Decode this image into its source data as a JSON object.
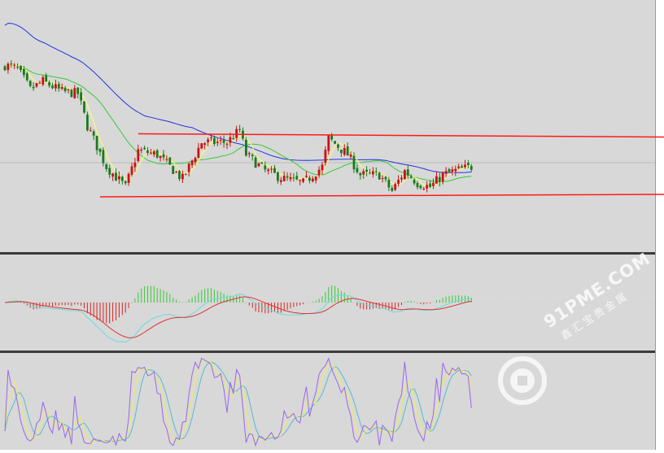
{
  "colors": {
    "background": "#d8d8d8",
    "separator": "#3a3a3a",
    "candle_up": "#cc1010",
    "candle_down": "#1a7a1a",
    "ma_fast": "#ffff66",
    "ma_mid": "#33cc33",
    "ma_slow": "#2233dd",
    "trendline": "#ff1a1a",
    "macd_pos": "#33cc33",
    "macd_neg": "#dd2222",
    "macd_dif": "#66dddd",
    "macd_dea": "#dd3333",
    "stoch_k": "#9966ee",
    "stoch_d": "#eeee55",
    "stoch_j": "#55bbcc"
  },
  "watermark": {
    "line1": "91PME.COM",
    "line2": "鑫汇宝贵金属",
    "icon": "coin-logo"
  },
  "chart_data": [
    {
      "type": "candlestick",
      "panel": "price",
      "series": [
        {
          "name": "OHLC",
          "type": "candlestick"
        },
        {
          "type": "line",
          "role": "moving-average-fast"
        },
        {
          "type": "line",
          "role": "moving-average-mid"
        },
        {
          "type": "line",
          "role": "moving-average-slow"
        }
      ],
      "trendlines": [
        {
          "role": "resistance",
          "from": [
            42,
            54.2
          ],
          "to": [
            147,
            53.2
          ]
        },
        {
          "role": "support",
          "from": [
            30,
            23.2
          ],
          "to": [
            147,
            24.0
          ]
        }
      ],
      "ylim": [
        0,
        100
      ],
      "grid": "horizontal reference line at 40"
    },
    {
      "type": "histogram-line",
      "panel": "macd",
      "series": [
        {
          "type": "bar",
          "role": "macd-histogram"
        },
        {
          "type": "line",
          "role": "dif"
        },
        {
          "type": "line",
          "role": "dea"
        }
      ],
      "ylim": [
        -100,
        100
      ]
    },
    {
      "type": "line",
      "panel": "stochastic",
      "series": [
        {
          "type": "line",
          "role": "k"
        },
        {
          "type": "line",
          "role": "d"
        },
        {
          "type": "line",
          "role": "j"
        }
      ],
      "ylim": [
        0,
        100
      ]
    }
  ]
}
